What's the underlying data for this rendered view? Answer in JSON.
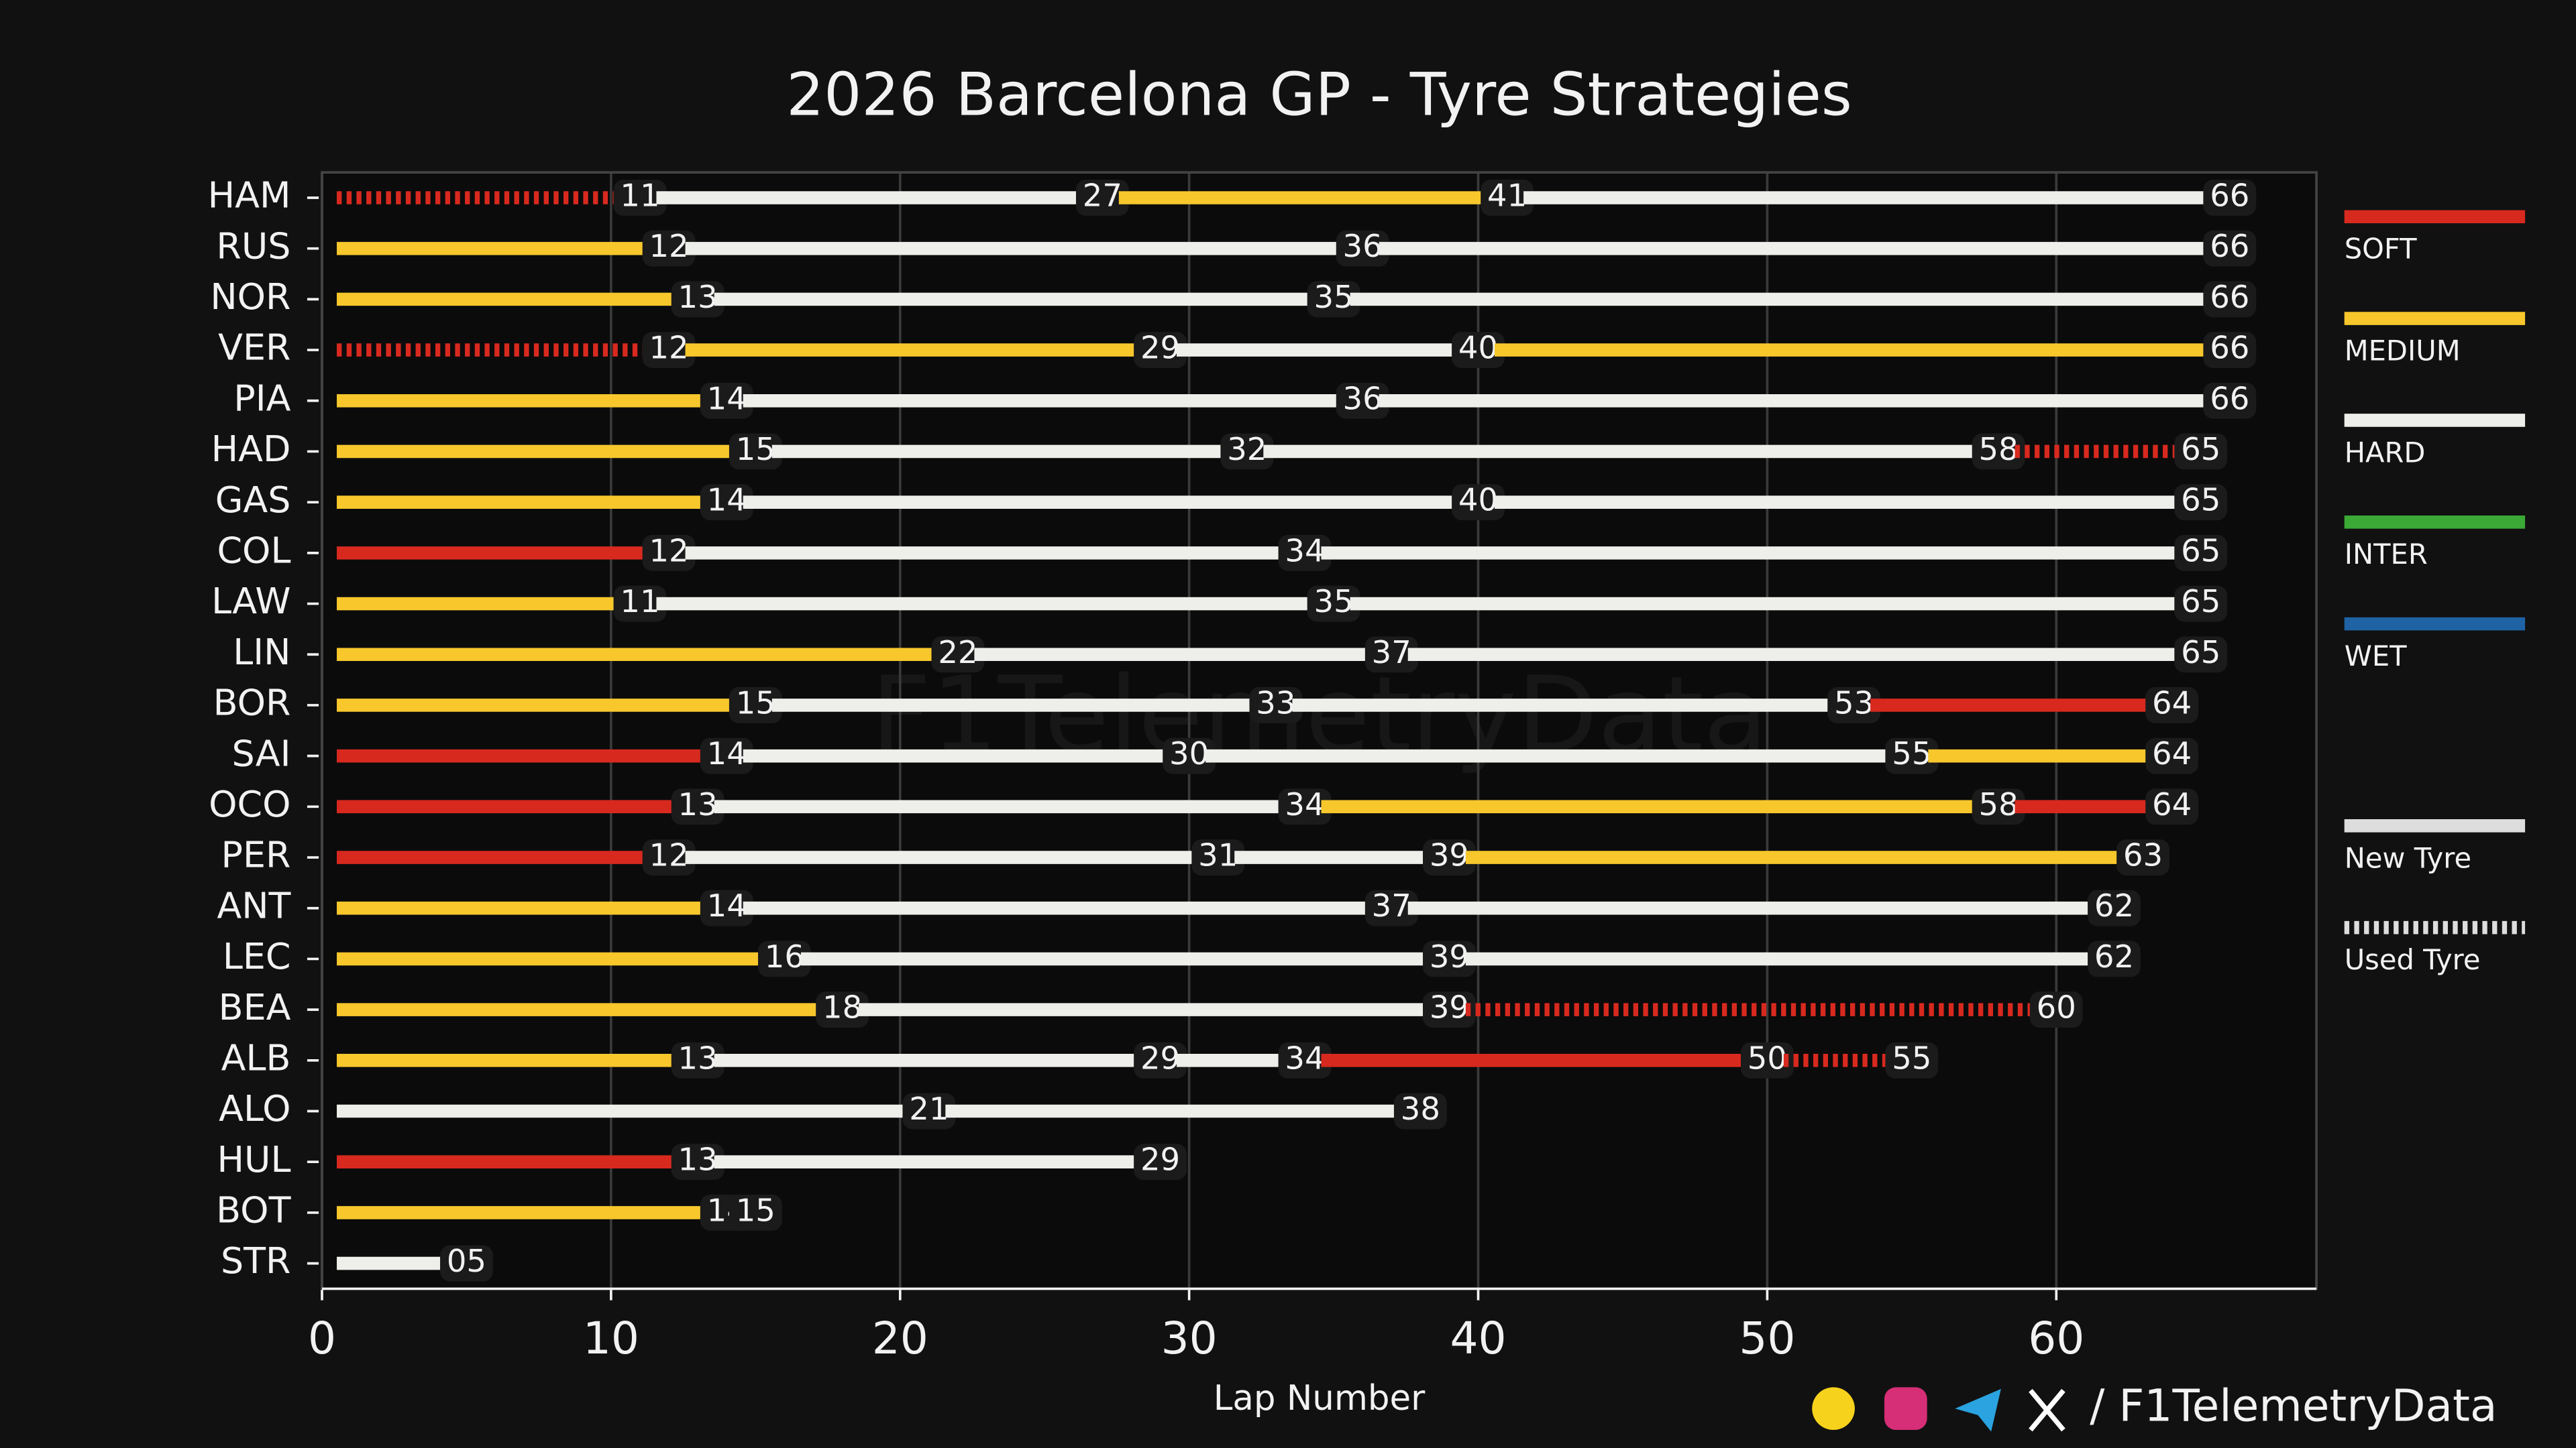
{
  "chart_data": {
    "type": "tyre-strategy",
    "title": "2026 Barcelona GP - Tyre Strategies",
    "x_label": "Lap Number",
    "xlim": [
      0,
      69
    ],
    "xticks": [
      0,
      10,
      20,
      30,
      40,
      50,
      60
    ],
    "grid": true,
    "compounds": [
      {
        "name": "SOFT",
        "color": "#d8291f"
      },
      {
        "name": "MEDIUM",
        "color": "#f7c72c"
      },
      {
        "name": "HARD",
        "color": "#eeeeea"
      },
      {
        "name": "INTER",
        "color": "#3aa935"
      },
      {
        "name": "WET",
        "color": "#1f63a5"
      }
    ],
    "tyre_states": [
      {
        "name": "New Tyre",
        "used": false
      },
      {
        "name": "Used Tyre",
        "used": true
      }
    ],
    "drivers": [
      {
        "name": "HAM",
        "stints": [
          {
            "compound": "SOFT",
            "used": true,
            "end": 11
          },
          {
            "compound": "HARD",
            "used": false,
            "end": 27
          },
          {
            "compound": "MEDIUM",
            "used": false,
            "end": 41
          },
          {
            "compound": "HARD",
            "used": false,
            "end": 66
          }
        ]
      },
      {
        "name": "RUS",
        "stints": [
          {
            "compound": "MEDIUM",
            "used": false,
            "end": 12
          },
          {
            "compound": "HARD",
            "used": false,
            "end": 36
          },
          {
            "compound": "HARD",
            "used": false,
            "end": 66
          }
        ]
      },
      {
        "name": "NOR",
        "stints": [
          {
            "compound": "MEDIUM",
            "used": false,
            "end": 13
          },
          {
            "compound": "HARD",
            "used": false,
            "end": 35
          },
          {
            "compound": "HARD",
            "used": false,
            "end": 66
          }
        ]
      },
      {
        "name": "VER",
        "stints": [
          {
            "compound": "SOFT",
            "used": true,
            "end": 12
          },
          {
            "compound": "MEDIUM",
            "used": false,
            "end": 29
          },
          {
            "compound": "HARD",
            "used": false,
            "end": 40
          },
          {
            "compound": "MEDIUM",
            "used": false,
            "end": 66
          }
        ]
      },
      {
        "name": "PIA",
        "stints": [
          {
            "compound": "MEDIUM",
            "used": false,
            "end": 14
          },
          {
            "compound": "HARD",
            "used": false,
            "end": 36
          },
          {
            "compound": "HARD",
            "used": false,
            "end": 66
          }
        ]
      },
      {
        "name": "HAD",
        "stints": [
          {
            "compound": "MEDIUM",
            "used": false,
            "end": 15
          },
          {
            "compound": "HARD",
            "used": false,
            "end": 32
          },
          {
            "compound": "HARD",
            "used": false,
            "end": 58
          },
          {
            "compound": "SOFT",
            "used": true,
            "end": 65
          }
        ]
      },
      {
        "name": "GAS",
        "stints": [
          {
            "compound": "MEDIUM",
            "used": false,
            "end": 14
          },
          {
            "compound": "HARD",
            "used": false,
            "end": 40
          },
          {
            "compound": "HARD",
            "used": false,
            "end": 65
          }
        ]
      },
      {
        "name": "COL",
        "stints": [
          {
            "compound": "SOFT",
            "used": false,
            "end": 12
          },
          {
            "compound": "HARD",
            "used": false,
            "end": 34
          },
          {
            "compound": "HARD",
            "used": false,
            "end": 65
          }
        ]
      },
      {
        "name": "LAW",
        "stints": [
          {
            "compound": "MEDIUM",
            "used": false,
            "end": 11
          },
          {
            "compound": "HARD",
            "used": false,
            "end": 35
          },
          {
            "compound": "HARD",
            "used": false,
            "end": 65
          }
        ]
      },
      {
        "name": "LIN",
        "stints": [
          {
            "compound": "MEDIUM",
            "used": false,
            "end": 22
          },
          {
            "compound": "HARD",
            "used": false,
            "end": 37
          },
          {
            "compound": "HARD",
            "used": false,
            "end": 65
          }
        ]
      },
      {
        "name": "BOR",
        "stints": [
          {
            "compound": "MEDIUM",
            "used": false,
            "end": 15
          },
          {
            "compound": "HARD",
            "used": false,
            "end": 33
          },
          {
            "compound": "HARD",
            "used": false,
            "end": 53
          },
          {
            "compound": "SOFT",
            "used": false,
            "end": 64
          }
        ]
      },
      {
        "name": "SAI",
        "stints": [
          {
            "compound": "SOFT",
            "used": false,
            "end": 14
          },
          {
            "compound": "HARD",
            "used": false,
            "end": 30
          },
          {
            "compound": "HARD",
            "used": false,
            "end": 55
          },
          {
            "compound": "MEDIUM",
            "used": false,
            "end": 64
          }
        ]
      },
      {
        "name": "OCO",
        "stints": [
          {
            "compound": "SOFT",
            "used": false,
            "end": 13
          },
          {
            "compound": "HARD",
            "used": false,
            "end": 34
          },
          {
            "compound": "MEDIUM",
            "used": false,
            "end": 58
          },
          {
            "compound": "SOFT",
            "used": false,
            "end": 64
          }
        ]
      },
      {
        "name": "PER",
        "stints": [
          {
            "compound": "SOFT",
            "used": false,
            "end": 12
          },
          {
            "compound": "HARD",
            "used": false,
            "end": 31
          },
          {
            "compound": "HARD",
            "used": false,
            "end": 39
          },
          {
            "compound": "MEDIUM",
            "used": false,
            "end": 63
          }
        ]
      },
      {
        "name": "ANT",
        "stints": [
          {
            "compound": "MEDIUM",
            "used": false,
            "end": 14
          },
          {
            "compound": "HARD",
            "used": false,
            "end": 37
          },
          {
            "compound": "HARD",
            "used": false,
            "end": 62
          }
        ]
      },
      {
        "name": "LEC",
        "stints": [
          {
            "compound": "MEDIUM",
            "used": false,
            "end": 16
          },
          {
            "compound": "HARD",
            "used": false,
            "end": 39
          },
          {
            "compound": "HARD",
            "used": false,
            "end": 62
          }
        ]
      },
      {
        "name": "BEA",
        "stints": [
          {
            "compound": "MEDIUM",
            "used": false,
            "end": 18
          },
          {
            "compound": "HARD",
            "used": false,
            "end": 39
          },
          {
            "compound": "SOFT",
            "used": true,
            "end": 60
          }
        ]
      },
      {
        "name": "ALB",
        "stints": [
          {
            "compound": "MEDIUM",
            "used": false,
            "end": 13
          },
          {
            "compound": "HARD",
            "used": false,
            "end": 29
          },
          {
            "compound": "HARD",
            "used": false,
            "end": 34
          },
          {
            "compound": "SOFT",
            "used": false,
            "end": 50
          },
          {
            "compound": "SOFT",
            "used": true,
            "end": 55
          }
        ]
      },
      {
        "name": "ALO",
        "stints": [
          {
            "compound": "HARD",
            "used": false,
            "end": 21
          },
          {
            "compound": "HARD",
            "used": false,
            "end": 38
          }
        ]
      },
      {
        "name": "HUL",
        "stints": [
          {
            "compound": "SOFT",
            "used": false,
            "end": 13
          },
          {
            "compound": "HARD",
            "used": false,
            "end": 29
          }
        ]
      },
      {
        "name": "BOT",
        "stints": [
          {
            "compound": "MEDIUM",
            "used": false,
            "end": 14
          },
          {
            "compound": "HARD",
            "used": false,
            "end": 15
          }
        ]
      },
      {
        "name": "STR",
        "stints": [
          {
            "compound": "HARD",
            "used": false,
            "end": 5,
            "end_label": "05"
          }
        ]
      }
    ],
    "watermark": "F1TelemetryData",
    "credit": "/ F1TelemetryData"
  }
}
